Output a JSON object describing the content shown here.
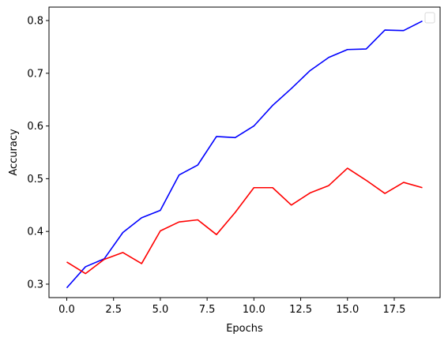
{
  "chart_data": {
    "type": "line",
    "title": "",
    "xlabel": "Epochs",
    "ylabel": "Accuracy",
    "xlim": [
      -0.95,
      19.95
    ],
    "ylim": [
      0.2745,
      0.8255
    ],
    "x": [
      0,
      1,
      2,
      3,
      4,
      5,
      6,
      7,
      8,
      9,
      10,
      11,
      12,
      13,
      14,
      15,
      16,
      17,
      18,
      19
    ],
    "xticks": [
      0.0,
      2.5,
      5.0,
      7.5,
      10.0,
      12.5,
      15.0,
      17.5
    ],
    "xtick_labels": [
      "0.0",
      "2.5",
      "5.0",
      "7.5",
      "10.0",
      "12.5",
      "15.0",
      "17.5"
    ],
    "yticks": [
      0.3,
      0.4,
      0.5,
      0.6,
      0.7,
      0.8
    ],
    "ytick_labels": [
      "0.3",
      "0.4",
      "0.5",
      "0.6",
      "0.7",
      "0.8"
    ],
    "grid": false,
    "legend": {
      "placement": "top-right",
      "entries": []
    },
    "series": [
      {
        "color": "#0000ff",
        "values": [
          0.293,
          0.333,
          0.348,
          0.398,
          0.426,
          0.44,
          0.507,
          0.526,
          0.58,
          0.578,
          0.6,
          0.639,
          0.671,
          0.705,
          0.73,
          0.745,
          0.746,
          0.782,
          0.781,
          0.799
        ]
      },
      {
        "color": "#ff0000",
        "values": [
          0.342,
          0.32,
          0.347,
          0.36,
          0.339,
          0.401,
          0.418,
          0.422,
          0.394,
          0.436,
          0.483,
          0.483,
          0.45,
          0.473,
          0.487,
          0.52,
          0.497,
          0.472,
          0.493,
          0.483
        ]
      }
    ]
  }
}
